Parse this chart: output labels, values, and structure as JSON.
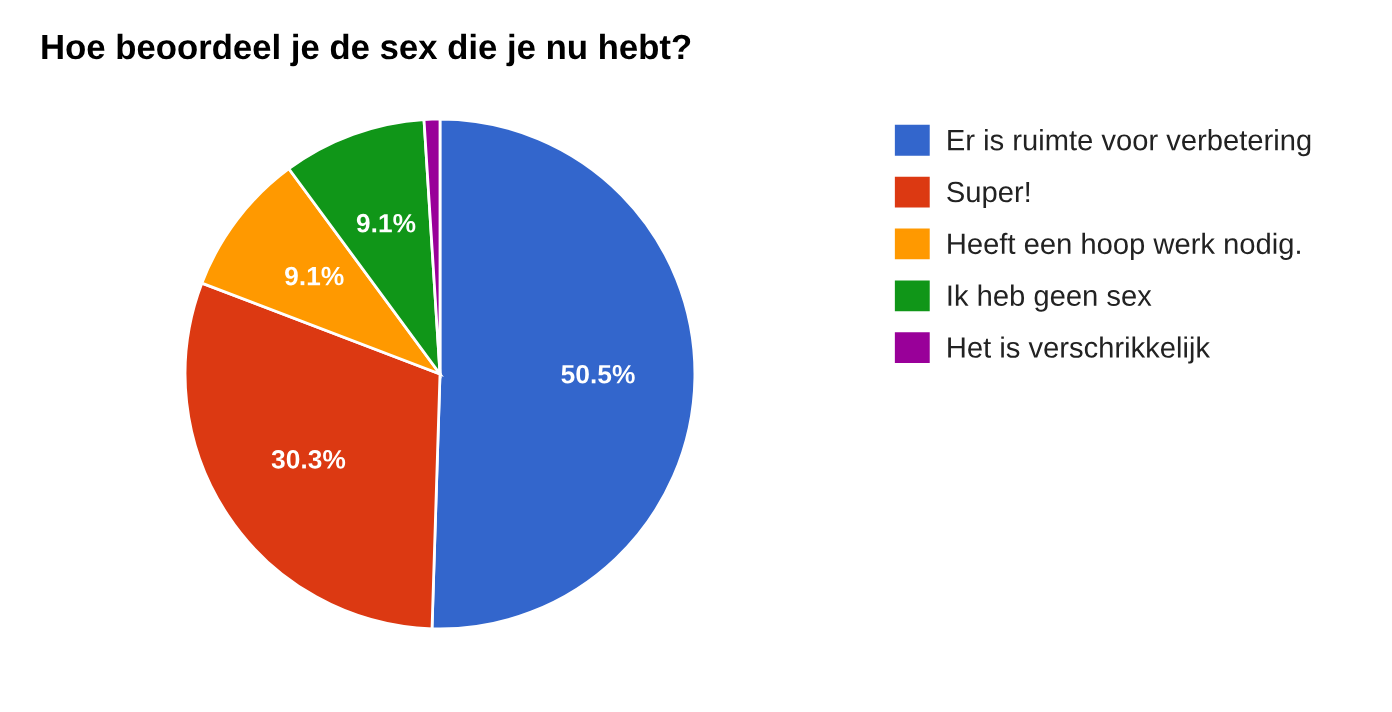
{
  "chart_data": {
    "type": "pie",
    "title": "Hoe beoordeel je de sex die je nu hebt?",
    "categories": [
      "Er is ruimte voor verbetering",
      "Super!",
      "Heeft een hoop werk nodig.",
      "Ik heb geen sex",
      "Het is verschrikkelijk"
    ],
    "values": [
      50.5,
      30.3,
      9.1,
      9.1,
      1.0
    ],
    "colors": [
      "#3366cc",
      "#dc3912",
      "#ff9900",
      "#109618",
      "#990099"
    ],
    "value_labels": [
      "50.5%",
      "30.3%",
      "9.1%",
      "9.1%",
      null
    ],
    "legend": "right"
  }
}
